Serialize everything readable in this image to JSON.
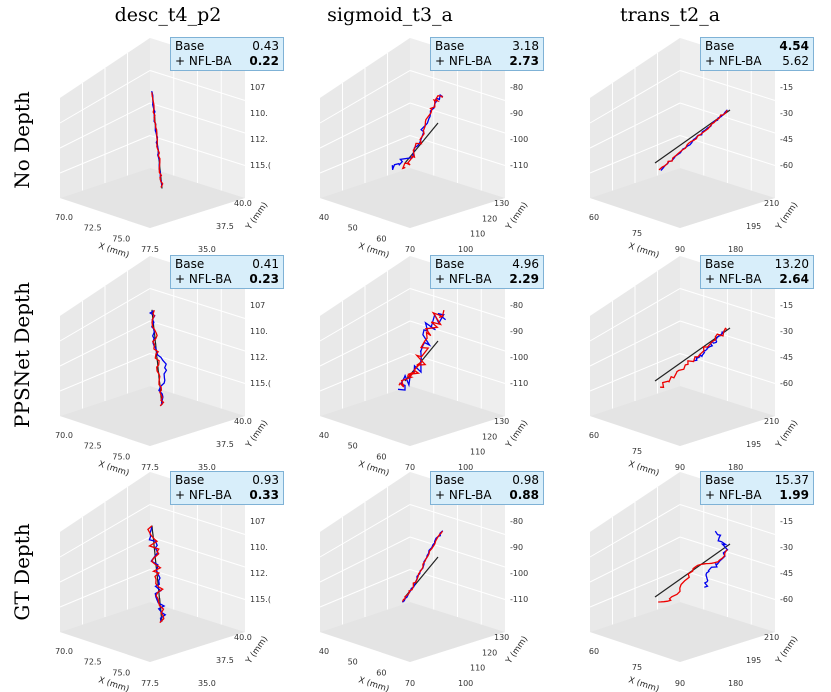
{
  "columns": [
    "desc_t4_p2",
    "sigmoid_t3_a",
    "trans_t2_a"
  ],
  "rows": [
    "No Depth",
    "PPSNet Depth",
    "GT Depth"
  ],
  "legend_labels": {
    "base": "Base",
    "nfl": "+ NFL-BA"
  },
  "colors": {
    "base": "#0000ee",
    "nfl": "#ee0000",
    "gt": "#222222",
    "legend_bg": "#d8eefa",
    "legend_border": "#7fb2d6"
  },
  "chart_data": [
    {
      "type": "line3d",
      "column": "desc_t4_p2",
      "xlabel": "X (mm)",
      "ylabel": "Y (mm)",
      "x_ticks": [
        "70.0",
        "72.5",
        "75.0",
        "77.5"
      ],
      "y_ticks": [
        "35.0",
        "37.5",
        "40.0"
      ],
      "z_ticks": [
        "107",
        "110.",
        "112.",
        "115.("
      ],
      "rows": [
        {
          "row": "No Depth",
          "base": "0.43",
          "nfl": "0.22",
          "bold": "nfl"
        },
        {
          "row": "PPSNet Depth",
          "base": "0.41",
          "nfl": "0.23",
          "bold": "nfl"
        },
        {
          "row": "GT Depth",
          "base": "0.93",
          "nfl": "0.33",
          "bold": "nfl"
        }
      ]
    },
    {
      "type": "line3d",
      "column": "sigmoid_t3_a",
      "xlabel": "X (mm)",
      "ylabel": "Y (mm)",
      "x_ticks": [
        "40",
        "50",
        "60",
        "70"
      ],
      "y_ticks": [
        "100",
        "110",
        "120",
        "130"
      ],
      "z_ticks": [
        "-80",
        "-90",
        "-100",
        "-110"
      ],
      "rows": [
        {
          "row": "No Depth",
          "base": "3.18",
          "nfl": "2.73",
          "bold": "nfl"
        },
        {
          "row": "PPSNet Depth",
          "base": "4.96",
          "nfl": "2.29",
          "bold": "nfl"
        },
        {
          "row": "GT Depth",
          "base": "0.98",
          "nfl": "0.88",
          "bold": "nfl"
        }
      ]
    },
    {
      "type": "line3d",
      "column": "trans_t2_a",
      "xlabel": "X (mm)",
      "ylabel": "Y (mm)",
      "x_ticks": [
        "60",
        "75",
        "90"
      ],
      "y_ticks": [
        "180",
        "195",
        "210"
      ],
      "z_ticks": [
        "-15",
        "-30",
        "-45",
        "-60"
      ],
      "rows": [
        {
          "row": "No Depth",
          "base": "4.54",
          "nfl": "5.62",
          "bold": "base"
        },
        {
          "row": "PPSNet Depth",
          "base": "13.20",
          "nfl": "2.64",
          "bold": "nfl"
        },
        {
          "row": "GT Depth",
          "base": "15.37",
          "nfl": "1.99",
          "bold": "nfl"
        }
      ]
    }
  ]
}
